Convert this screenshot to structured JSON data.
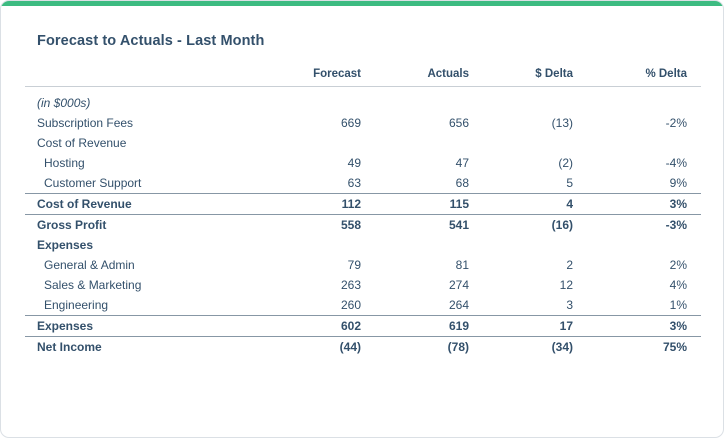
{
  "title": "Forecast to Actuals - Last Month",
  "colors": {
    "accent_green": "#3dbb81",
    "text_navy": "#33506b",
    "rule_heavy": "#8797a5",
    "rule_light": "#c9cfd5",
    "card_border": "#dbe0e5"
  },
  "table": {
    "columns": [
      "Forecast",
      "Actuals",
      "$ Delta",
      "% Delta"
    ],
    "rows": [
      {
        "label": "(in $000s)",
        "kind": "unit",
        "values": [
          "",
          "",
          "",
          ""
        ]
      },
      {
        "label": "Subscription Fees",
        "kind": "item",
        "values": [
          "669",
          "656",
          "(13)",
          "-2%"
        ]
      },
      {
        "label": "Cost of Revenue",
        "kind": "section",
        "values": [
          "",
          "",
          "",
          ""
        ]
      },
      {
        "label": "Hosting",
        "kind": "sub",
        "values": [
          "49",
          "47",
          "(2)",
          "-4%"
        ]
      },
      {
        "label": "Customer Support",
        "kind": "sub",
        "values": [
          "63",
          "68",
          "5",
          "9%"
        ]
      },
      {
        "label": "Cost of Revenue",
        "kind": "total",
        "values": [
          "112",
          "115",
          "4",
          "3%"
        ]
      },
      {
        "label": "Gross Profit",
        "kind": "total",
        "values": [
          "558",
          "541",
          "(16)",
          "-3%"
        ]
      },
      {
        "label": "Expenses",
        "kind": "section-bold",
        "values": [
          "",
          "",
          "",
          ""
        ]
      },
      {
        "label": "General & Admin",
        "kind": "sub",
        "values": [
          "79",
          "81",
          "2",
          "2%"
        ]
      },
      {
        "label": "Sales & Marketing",
        "kind": "sub",
        "values": [
          "263",
          "274",
          "12",
          "4%"
        ]
      },
      {
        "label": "Engineering",
        "kind": "sub",
        "values": [
          "260",
          "264",
          "3",
          "1%"
        ]
      },
      {
        "label": "Expenses",
        "kind": "total",
        "values": [
          "602",
          "619",
          "17",
          "3%"
        ]
      },
      {
        "label": "Net Income",
        "kind": "total",
        "values": [
          "(44)",
          "(78)",
          "(34)",
          "75%"
        ]
      }
    ]
  }
}
